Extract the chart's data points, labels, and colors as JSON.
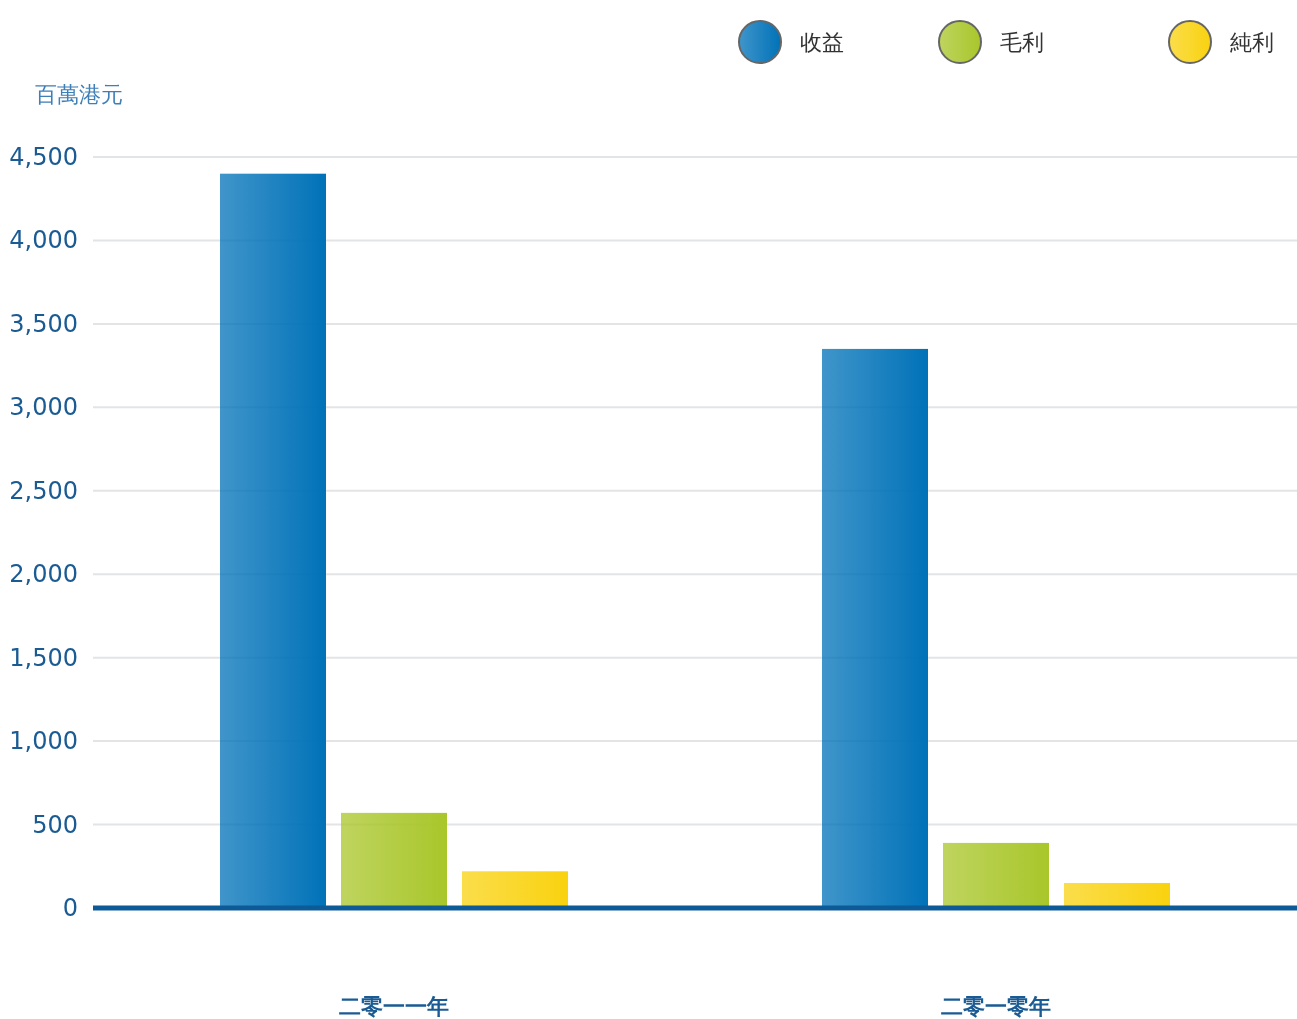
{
  "chart_data": {
    "type": "bar",
    "ylabel": "百萬港元",
    "categories": [
      "二零一一年",
      "二零一零年"
    ],
    "series": [
      {
        "name": "收益",
        "color": "#0072b8",
        "values": [
          4400,
          3350
        ]
      },
      {
        "name": "毛利",
        "color": "#a9c62a",
        "values": [
          570,
          390
        ]
      },
      {
        "name": "純利",
        "color": "#f9d20f",
        "values": [
          220,
          150
        ]
      }
    ],
    "ylim": [
      0,
      4500
    ],
    "yticks": [
      {
        "value": 0,
        "label": "0"
      },
      {
        "value": 500,
        "label": "500"
      },
      {
        "value": 1000,
        "label": "1,000"
      },
      {
        "value": 1500,
        "label": "1,500"
      },
      {
        "value": 2000,
        "label": "2,000"
      },
      {
        "value": 2500,
        "label": "2,500"
      },
      {
        "value": 3000,
        "label": "3,000"
      },
      {
        "value": 3500,
        "label": "3,500"
      },
      {
        "value": 4000,
        "label": "4,000"
      },
      {
        "value": 4500,
        "label": "4,500"
      }
    ],
    "grid": "y",
    "legend": "top right"
  }
}
